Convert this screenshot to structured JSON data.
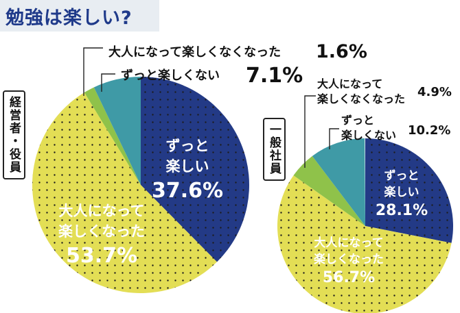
{
  "title": "勉強は楽しい?",
  "colors": {
    "navy": "#233a86",
    "yellow": "#e3de55",
    "green": "#8fc24a",
    "teal": "#3f9aa6",
    "title": "#1f3a8a"
  },
  "chart_data": [
    {
      "type": "pie",
      "group": "経営者・役員",
      "slices": [
        {
          "label": "ずっと楽しい",
          "value": 37.6,
          "display": "37.6%"
        },
        {
          "label": "大人になって楽しくなった",
          "value": 53.7,
          "display": "53.7%"
        },
        {
          "label": "大人になって楽しくなくなった",
          "value": 1.6,
          "display": "1.6%"
        },
        {
          "label": "ずっと楽しくない",
          "value": 7.1,
          "display": "7.1%"
        }
      ]
    },
    {
      "type": "pie",
      "group": "一般社員",
      "slices": [
        {
          "label": "ずっと楽しい",
          "value": 28.1,
          "display": "28.1%"
        },
        {
          "label": "大人になって楽しくなった",
          "value": 56.7,
          "display": "56.7%"
        },
        {
          "label": "大人になって楽しくなくなった",
          "value": 4.9,
          "display": "4.9%"
        },
        {
          "label": "ずっと楽しくない",
          "value": 10.2,
          "display": "10.2%"
        }
      ]
    }
  ]
}
